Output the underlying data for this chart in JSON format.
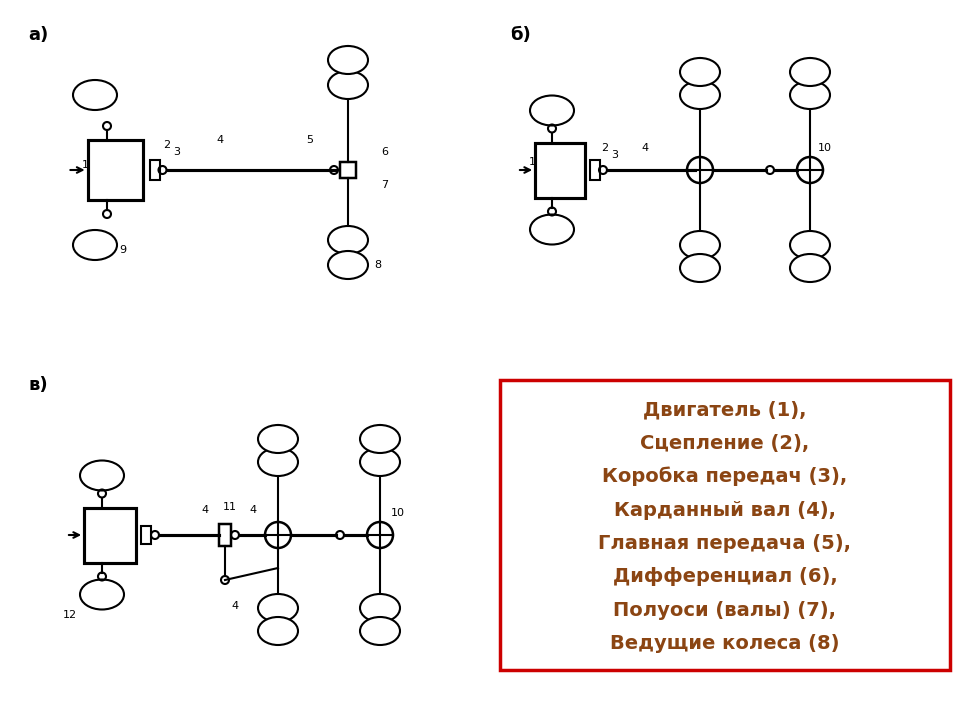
{
  "title": "",
  "bg_color": "#ffffff",
  "line_color": "#000000",
  "label_color": "#8B4513",
  "border_color": "#cc0000",
  "legend_lines": [
    "Двигатель (1),",
    "Сцепление (2),",
    "Коробка передач (3),",
    "Карданный вал (4),",
    "Главная передача (5),",
    "Дифференциал (6),",
    "Полуоси (валы) (7),",
    "Ведущие колеса (8)"
  ],
  "diagram_a_label": "а)",
  "diagram_b_label": "б)",
  "diagram_v_label": "в)"
}
